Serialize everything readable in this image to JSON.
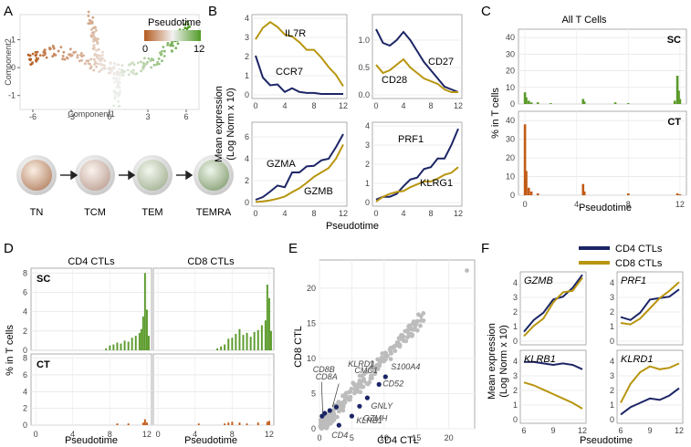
{
  "panels": {
    "A": "A",
    "B": "B",
    "C": "C",
    "D": "D",
    "E": "E",
    "F": "F"
  },
  "colors": {
    "navy": "#1c2566",
    "gold": "#b8950f",
    "green": "#5a9a2a",
    "orange": "#c25a14",
    "gray": "#bcbcbc"
  },
  "panelA": {
    "xlabel": "Component1",
    "ylabel": "Component2",
    "legend_title": "Pseudotime",
    "legend_min": "0",
    "legend_max": "12",
    "x_ticks": [
      "-6",
      "-3",
      "0",
      "3",
      "6"
    ],
    "y_ticks": [
      "1",
      "0",
      "-1"
    ],
    "cells": [
      "TN",
      "TCM",
      "TEM",
      "TEMRA"
    ]
  },
  "chart_data": [
    {
      "id": "B1",
      "type": "line",
      "x": [
        0,
        1,
        2,
        3,
        4,
        5,
        6,
        7,
        8,
        9,
        10,
        11,
        12
      ],
      "series": [
        {
          "name": "IL7R",
          "color": "gold",
          "values": [
            2.9,
            3.5,
            3.8,
            3.55,
            3.15,
            3.05,
            2.75,
            2.35,
            2.35,
            1.95,
            1.45,
            1.05,
            0.45
          ]
        },
        {
          "name": "CCR7",
          "color": "navy",
          "values": [
            2.05,
            0.9,
            0.5,
            0.55,
            0.15,
            0.35,
            0.15,
            0.1,
            0.1,
            0.05,
            0.05,
            0.05,
            0.05
          ]
        }
      ],
      "xlim": [
        0,
        12
      ],
      "ylim": [
        0,
        4
      ],
      "x_ticks": [
        "0",
        "4",
        "8",
        "12"
      ],
      "y_ticks": [
        "0",
        "1",
        "2",
        "3",
        "4"
      ]
    },
    {
      "id": "B2",
      "type": "line",
      "x": [
        0,
        1,
        2,
        3,
        4,
        5,
        6,
        7,
        8,
        9,
        10,
        11,
        12
      ],
      "series": [
        {
          "name": "CD27",
          "color": "navy",
          "values": [
            1.2,
            0.95,
            0.9,
            1.0,
            1.15,
            1.0,
            0.8,
            0.6,
            0.45,
            0.3,
            0.15,
            0.1,
            0.05
          ]
        },
        {
          "name": "CD28",
          "color": "gold",
          "values": [
            0.55,
            0.4,
            0.45,
            0.55,
            0.65,
            0.5,
            0.4,
            0.3,
            0.25,
            0.2,
            0.1,
            0.05,
            0.05
          ]
        }
      ],
      "xlim": [
        0,
        12
      ],
      "ylim": [
        0,
        1.4
      ],
      "x_ticks": [
        "0",
        "4",
        "8",
        "12"
      ],
      "y_ticks": [
        "0.0",
        "0.5",
        "1.0"
      ]
    },
    {
      "id": "B3",
      "type": "line",
      "x": [
        0,
        1,
        2,
        3,
        4,
        5,
        6,
        7,
        8,
        9,
        10,
        11,
        12
      ],
      "series": [
        {
          "name": "GZMA",
          "color": "navy",
          "values": [
            0.25,
            0.5,
            1.0,
            1.55,
            1.4,
            2.75,
            2.75,
            3.3,
            3.35,
            3.85,
            4.0,
            5.05,
            6.25
          ]
        },
        {
          "name": "GZMB",
          "color": "gold",
          "values": [
            0.05,
            0.1,
            0.2,
            0.35,
            0.55,
            0.95,
            1.3,
            1.8,
            2.35,
            2.75,
            3.15,
            4.0,
            5.3
          ]
        }
      ],
      "xlim": [
        0,
        12
      ],
      "ylim": [
        0,
        7
      ],
      "x_ticks": [
        "0",
        "4",
        "8",
        "12"
      ],
      "y_ticks": [
        "0",
        "2",
        "4",
        "6"
      ]
    },
    {
      "id": "B4",
      "type": "line",
      "x": [
        0,
        1,
        2,
        3,
        4,
        5,
        6,
        7,
        8,
        9,
        10,
        11,
        12
      ],
      "series": [
        {
          "name": "PRF1",
          "color": "navy",
          "values": [
            0.15,
            0.3,
            0.3,
            0.45,
            0.85,
            1.2,
            1.3,
            1.75,
            1.85,
            2.3,
            2.3,
            3.0,
            3.85
          ]
        },
        {
          "name": "KLRG1",
          "color": "gold",
          "values": [
            0.05,
            0.3,
            0.45,
            0.55,
            0.6,
            0.8,
            0.95,
            1.1,
            1.1,
            1.25,
            1.45,
            1.55,
            1.85
          ]
        }
      ],
      "xlim": [
        0,
        12
      ],
      "ylim": [
        0,
        4
      ],
      "x_ticks": [
        "0",
        "4",
        "8",
        "12"
      ],
      "y_ticks": [
        "0",
        "1",
        "2",
        "3",
        "4"
      ]
    },
    {
      "id": "C",
      "type": "bar",
      "title": "All T Cells",
      "facets": [
        "SC",
        "CT"
      ],
      "xlabel": "Pseudotime",
      "ylabel": "% in T cells",
      "xlim": [
        -0.5,
        12.5
      ],
      "ylim": [
        0,
        45
      ],
      "x_ticks": [
        "0",
        "4",
        "8",
        "12"
      ],
      "y_ticks": [
        "0",
        "10",
        "20",
        "30",
        "40"
      ],
      "SC": {
        "x": [
          0,
          0.1,
          0.3,
          0.5,
          1,
          2,
          4.5,
          4.6,
          7,
          8,
          11.6,
          11.8,
          11.9,
          12
        ],
        "values": [
          7,
          4,
          2,
          1,
          1,
          0.5,
          3,
          1.5,
          1,
          0.5,
          2,
          17,
          8,
          3
        ]
      },
      "CT": {
        "x": [
          0,
          0.1,
          0.3,
          0.5,
          1,
          4.5,
          4.6,
          8,
          11.8,
          12
        ],
        "values": [
          38,
          13,
          4,
          2,
          1,
          6,
          2,
          1,
          1,
          0.5
        ]
      }
    },
    {
      "id": "D",
      "type": "bar",
      "facets_cols": [
        "CD4 CTLs",
        "CD8 CTLs"
      ],
      "facets_rows": [
        "SC",
        "CT"
      ],
      "xlabel": "Pseudotime",
      "ylabel": "% in T cells",
      "xlim": [
        -0.5,
        12.5
      ],
      "ylim": [
        0,
        8.5
      ],
      "x_ticks": [
        "0",
        "4",
        "8",
        "12"
      ],
      "y_ticks": [
        "0",
        "2",
        "4",
        "6",
        "8"
      ],
      "CD4_SC": {
        "x": [
          7.6,
          8,
          8.4,
          8.8,
          9.2,
          9.6,
          10,
          10.4,
          10.8,
          11.2,
          11.4,
          11.6,
          11.8,
          12,
          12.2
        ],
        "values": [
          0.2,
          0.5,
          0.6,
          0.8,
          0.7,
          1,
          0.9,
          1.3,
          1.5,
          1.8,
          2.2,
          3.5,
          8,
          4.2,
          1.5
        ]
      },
      "CD8_SC": {
        "x": [
          6.4,
          6.8,
          7.2,
          7.6,
          8,
          8.4,
          8.8,
          9.2,
          9.6,
          10,
          10.4,
          10.8,
          11.2,
          11.6,
          11.8,
          12,
          12.2
        ],
        "values": [
          0.2,
          0.4,
          0.6,
          1.2,
          1.3,
          1.7,
          2.2,
          1.6,
          1.8,
          1.4,
          1.9,
          2.1,
          2.6,
          3.1,
          6.8,
          5.4,
          2
        ]
      },
      "CD4_CT": {
        "x": [
          8.8,
          10,
          11.6,
          11.8,
          12
        ],
        "values": [
          0.2,
          0.2,
          0.3,
          0.7,
          0.3
        ]
      },
      "CD8_CT": {
        "x": [
          4.4,
          7.2,
          7.6,
          8,
          8.8,
          9.6,
          10.8,
          11.8,
          12
        ],
        "values": [
          0.2,
          0.2,
          0.3,
          0.4,
          0.3,
          0.2,
          0.3,
          0.4,
          0.5
        ]
      }
    },
    {
      "id": "E",
      "type": "scatter",
      "xlabel": "CD4 CTL",
      "ylabel": "CD8 CTL",
      "xlim": [
        0,
        24
      ],
      "ylim": [
        0,
        24
      ],
      "x_ticks": [
        "0",
        "5",
        "10",
        "15",
        "20"
      ],
      "y_ticks": [
        "0",
        "5",
        "10",
        "15",
        "20"
      ],
      "highlight": [
        {
          "label": "CD8B",
          "x": 0.4,
          "y": 1.8
        },
        {
          "label": "CD8A",
          "x": 0.8,
          "y": 2.2
        },
        {
          "label": "KLRD1",
          "x": 1.6,
          "y": 2.6
        },
        {
          "label": "CMC1",
          "x": 2.6,
          "y": 3.1
        },
        {
          "label": "S100A4",
          "x": 10.2,
          "y": 7.4
        },
        {
          "label": "CD52",
          "x": 9.2,
          "y": 6.3
        },
        {
          "label": "GNLY",
          "x": 7.4,
          "y": 4.4
        },
        {
          "label": "GZMH",
          "x": 6.2,
          "y": 3.2
        },
        {
          "label": "KLRB1",
          "x": 5.0,
          "y": 1.8
        },
        {
          "label": "CD4",
          "x": 3.0,
          "y": 0.5
        }
      ]
    },
    {
      "id": "F",
      "type": "line",
      "legend": [
        "CD4 CTLs",
        "CD8 CTLs"
      ],
      "xlabel": "Pseudotime",
      "ylabel": "Mean expression (Log Norm x 10)",
      "x": [
        6,
        7,
        8,
        9,
        10,
        11,
        12
      ],
      "x_ticks": [
        "6",
        "9",
        "12"
      ],
      "y_ticks": [
        "0",
        "1",
        "2",
        "3",
        "4"
      ],
      "ylim": [
        0,
        4.5
      ],
      "genes": [
        {
          "gene": "GZMB",
          "CD4": [
            0.65,
            1.45,
            1.95,
            2.85,
            3.05,
            3.65,
            4.55
          ],
          "CD8": [
            0.35,
            1.05,
            1.55,
            2.65,
            3.35,
            3.45,
            4.35
          ]
        },
        {
          "gene": "PRF1",
          "CD4": [
            1.65,
            1.45,
            1.95,
            2.85,
            2.95,
            3.05,
            3.55
          ],
          "CD8": [
            1.25,
            1.15,
            1.55,
            2.25,
            2.95,
            3.45,
            4.05
          ]
        },
        {
          "gene": "KLRB1",
          "CD4": [
            3.95,
            3.95,
            3.85,
            3.75,
            3.85,
            3.75,
            3.45
          ],
          "CD8": [
            2.55,
            2.35,
            2.05,
            1.75,
            1.45,
            1.15,
            0.75
          ]
        },
        {
          "gene": "KLRD1",
          "CD4": [
            0.35,
            0.85,
            1.15,
            1.45,
            1.35,
            1.65,
            2.15
          ],
          "CD8": [
            1.15,
            2.45,
            3.25,
            3.65,
            3.45,
            3.55,
            3.85
          ]
        }
      ]
    }
  ],
  "panelB": {
    "ylabel1": "Mean expression",
    "ylabel2": "(Log Norm x 10)",
    "xlabel": "Pseudotime"
  },
  "panelF": {
    "ylabel1": "Mean expression",
    "ylabel2": "(Log Norm x 10)"
  }
}
